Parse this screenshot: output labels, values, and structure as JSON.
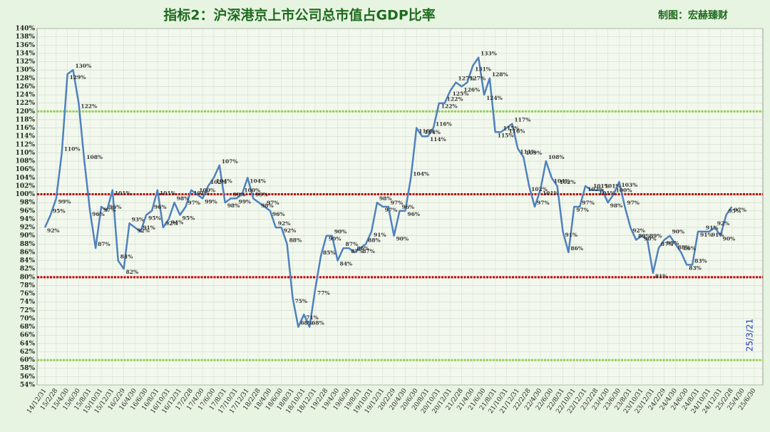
{
  "chart_data": {
    "type": "line",
    "title": "指标2：沪深港京上市公司总市值占GDP比率",
    "subtitle": "制图：宏赫臻财",
    "annotation": "25/3/21",
    "categories": [
      "14/12/31",
      null,
      "15/2/28",
      null,
      "15/4/30",
      null,
      "15/6/30",
      null,
      "15/8/31",
      null,
      "15/10/31",
      null,
      "15/12/31",
      null,
      "16/2/29",
      null,
      "16/4/30",
      null,
      "16/6/30",
      null,
      "16/8/31",
      null,
      "16/10/31",
      null,
      "16/12/31",
      null,
      "17/2/28",
      null,
      "17/4/30",
      null,
      "17/6/30",
      null,
      "17/8/31",
      null,
      "17/10/31",
      null,
      "17/12/31",
      null,
      "18/2/28",
      null,
      "18/4/30",
      null,
      "18/6/30",
      null,
      "18/8/31",
      null,
      "18/10/31",
      null,
      "18/12/31",
      null,
      "19/2/28",
      null,
      "19/4/30",
      null,
      "19/6/30",
      null,
      "19/8/31",
      null,
      "19/10/31",
      null,
      "19/12/31",
      null,
      "20/2/29",
      null,
      "20/4/30",
      null,
      "20/6/30",
      null,
      "20/8/31",
      null,
      "20/10/31",
      null,
      "20/12/31",
      null,
      "21/2/28",
      null,
      "21/4/30",
      null,
      "21/6/30",
      null,
      "21/8/31",
      null,
      "21/10/31",
      null,
      "21/12/31",
      null,
      "22/2/28",
      null,
      "22/4/30",
      null,
      "22/6/30",
      null,
      "22/8/31",
      null,
      "22/10/31",
      null,
      "22/12/31",
      null,
      "23/2/28",
      null,
      "23/4/30",
      null,
      "23/6/30",
      null,
      "23/8/31",
      null,
      "23/10/31",
      null,
      "23/12/31",
      null,
      "24/2/29",
      null,
      "24/4/30",
      null,
      "24/6/30",
      null,
      "24/8/31",
      null,
      "24/10/31",
      null,
      "24/12/31",
      null,
      "25/2/28",
      null,
      "25/4/30",
      null,
      "25/6/30"
    ],
    "series": [
      {
        "name": "总市值占GDP比率",
        "color": "#4f81bd",
        "values": [
          92,
          95,
          99,
          110,
          129,
          130,
          122,
          108,
          96,
          87,
          97,
          96,
          101,
          84,
          82,
          93,
          92,
          91,
          95,
          96,
          101,
          92,
          94,
          98,
          95,
          97,
          101,
          100,
          99,
          102,
          104,
          107,
          98,
          99,
          99,
          100,
          104,
          99,
          98,
          97,
          96,
          92,
          92,
          88,
          75,
          68,
          71,
          68,
          77,
          85,
          90,
          90,
          84,
          87,
          87,
          86,
          87,
          88,
          91,
          98,
          97,
          97,
          90,
          96,
          96,
          104,
          116,
          114,
          114,
          116,
          122,
          122,
          125,
          127,
          126,
          127,
          131,
          133,
          124,
          128,
          115,
          115,
          116,
          117,
          111,
          109,
          102,
          97,
          101,
          108,
          104,
          102,
          91,
          86,
          97,
          97,
          102,
          101,
          101,
          101,
          98,
          100,
          103,
          97,
          92,
          89,
          90,
          89,
          81,
          87,
          89,
          90,
          88,
          86,
          83,
          83,
          91,
          91,
          91,
          92,
          90,
          95,
          97,
          null,
          null,
          null,
          null
        ],
        "value_labels": [
          "92%",
          "95%",
          "99%",
          "110%",
          "129%",
          "130%",
          "122%",
          "108%",
          "96%",
          "87%",
          "97%",
          "96%",
          "101%",
          "84%",
          "82%",
          "93%",
          "92%",
          "91%",
          "95%",
          "96%",
          "101%",
          "92%",
          "94%",
          "98%",
          "95%",
          "97%",
          "101%",
          "100%",
          "99%",
          "102%",
          "104%",
          "107%",
          "98%",
          "99%",
          "99%",
          "100%",
          "104%",
          "99%",
          "98%",
          "97%",
          "96%",
          "92%",
          "92%",
          "88%",
          "75%",
          "68%",
          "71%",
          "68%",
          "77%",
          "85%",
          "90%",
          "90%",
          "84%",
          "87%",
          "87%",
          "86%",
          "87%",
          "88%",
          "91%",
          "98%",
          "97%",
          "97%",
          "90%",
          "96%",
          "96%",
          "104%",
          "116%",
          "114%",
          "114%",
          "116%",
          "122%",
          "122%",
          "125%",
          "127%",
          "126%",
          "127%",
          "131%",
          "133%",
          "124%",
          "128%",
          "115%",
          "115%",
          "116%",
          "117%",
          "111%",
          "109%",
          "102%",
          "97%",
          "101%",
          "108%",
          "104%",
          "102%",
          "91%",
          "86%",
          "97%",
          "97%",
          "102%",
          "101%",
          "101%",
          "101%",
          "98%",
          "100%",
          "103%",
          "97%",
          "92%",
          "89%",
          "90%",
          "89%",
          "81%",
          "87%",
          "89%",
          "90%",
          "88%",
          "86%",
          "83%",
          "83%",
          "91%",
          "91%",
          "91%",
          "92%",
          "90%",
          "95%",
          "97%",
          null,
          null,
          null,
          null
        ]
      }
    ],
    "reference_lines": [
      {
        "value": 120,
        "color": "#92d050"
      },
      {
        "value": 100,
        "color": "#c00000"
      },
      {
        "value": 80,
        "color": "#c00000"
      },
      {
        "value": 60,
        "color": "#92d050"
      }
    ],
    "ylim": [
      54,
      140
    ],
    "yticks": [
      {
        "value": 54,
        "label": "54%"
      },
      {
        "value": 56,
        "label": "56%"
      },
      {
        "value": 58,
        "label": "58%"
      },
      {
        "value": 60,
        "label": "60%"
      },
      {
        "value": 62,
        "label": "62%"
      },
      {
        "value": 64,
        "label": "64%"
      },
      {
        "value": 66,
        "label": "66%"
      },
      {
        "value": 68,
        "label": "68%"
      },
      {
        "value": 70,
        "label": "70%"
      },
      {
        "value": 72,
        "label": "72%"
      },
      {
        "value": 74,
        "label": "74%"
      },
      {
        "value": 76,
        "label": "76%"
      },
      {
        "value": 78,
        "label": "78%"
      },
      {
        "value": 80,
        "label": "80%"
      },
      {
        "value": 82,
        "label": "82%"
      },
      {
        "value": 84,
        "label": "84%"
      },
      {
        "value": 86,
        "label": "86%"
      },
      {
        "value": 88,
        "label": "88%"
      },
      {
        "value": 90,
        "label": "90%"
      },
      {
        "value": 92,
        "label": "92%"
      },
      {
        "value": 94,
        "label": "94%"
      },
      {
        "value": 96,
        "label": "96%"
      },
      {
        "value": 98,
        "label": "98%"
      },
      {
        "value": 100,
        "label": "100%"
      },
      {
        "value": 102,
        "label": "102%"
      },
      {
        "value": 104,
        "label": "104%"
      },
      {
        "value": 106,
        "label": "106%"
      },
      {
        "value": 108,
        "label": "108%"
      },
      {
        "value": 110,
        "label": "110%"
      },
      {
        "value": 112,
        "label": "112%"
      },
      {
        "value": 114,
        "label": "114%"
      },
      {
        "value": 116,
        "label": "116%"
      },
      {
        "value": 118,
        "label": "118%"
      },
      {
        "value": 120,
        "label": "120%"
      },
      {
        "value": 122,
        "label": "122%"
      },
      {
        "value": 124,
        "label": "124%"
      },
      {
        "value": 126,
        "label": "126%"
      },
      {
        "value": 128,
        "label": "128%"
      },
      {
        "value": 130,
        "label": "130%"
      },
      {
        "value": 132,
        "label": "132%"
      },
      {
        "value": 134,
        "label": "134%"
      },
      {
        "value": 136,
        "label": "136%"
      },
      {
        "value": 138,
        "label": "138%"
      },
      {
        "value": 140,
        "label": "140%"
      }
    ],
    "grid": true
  }
}
